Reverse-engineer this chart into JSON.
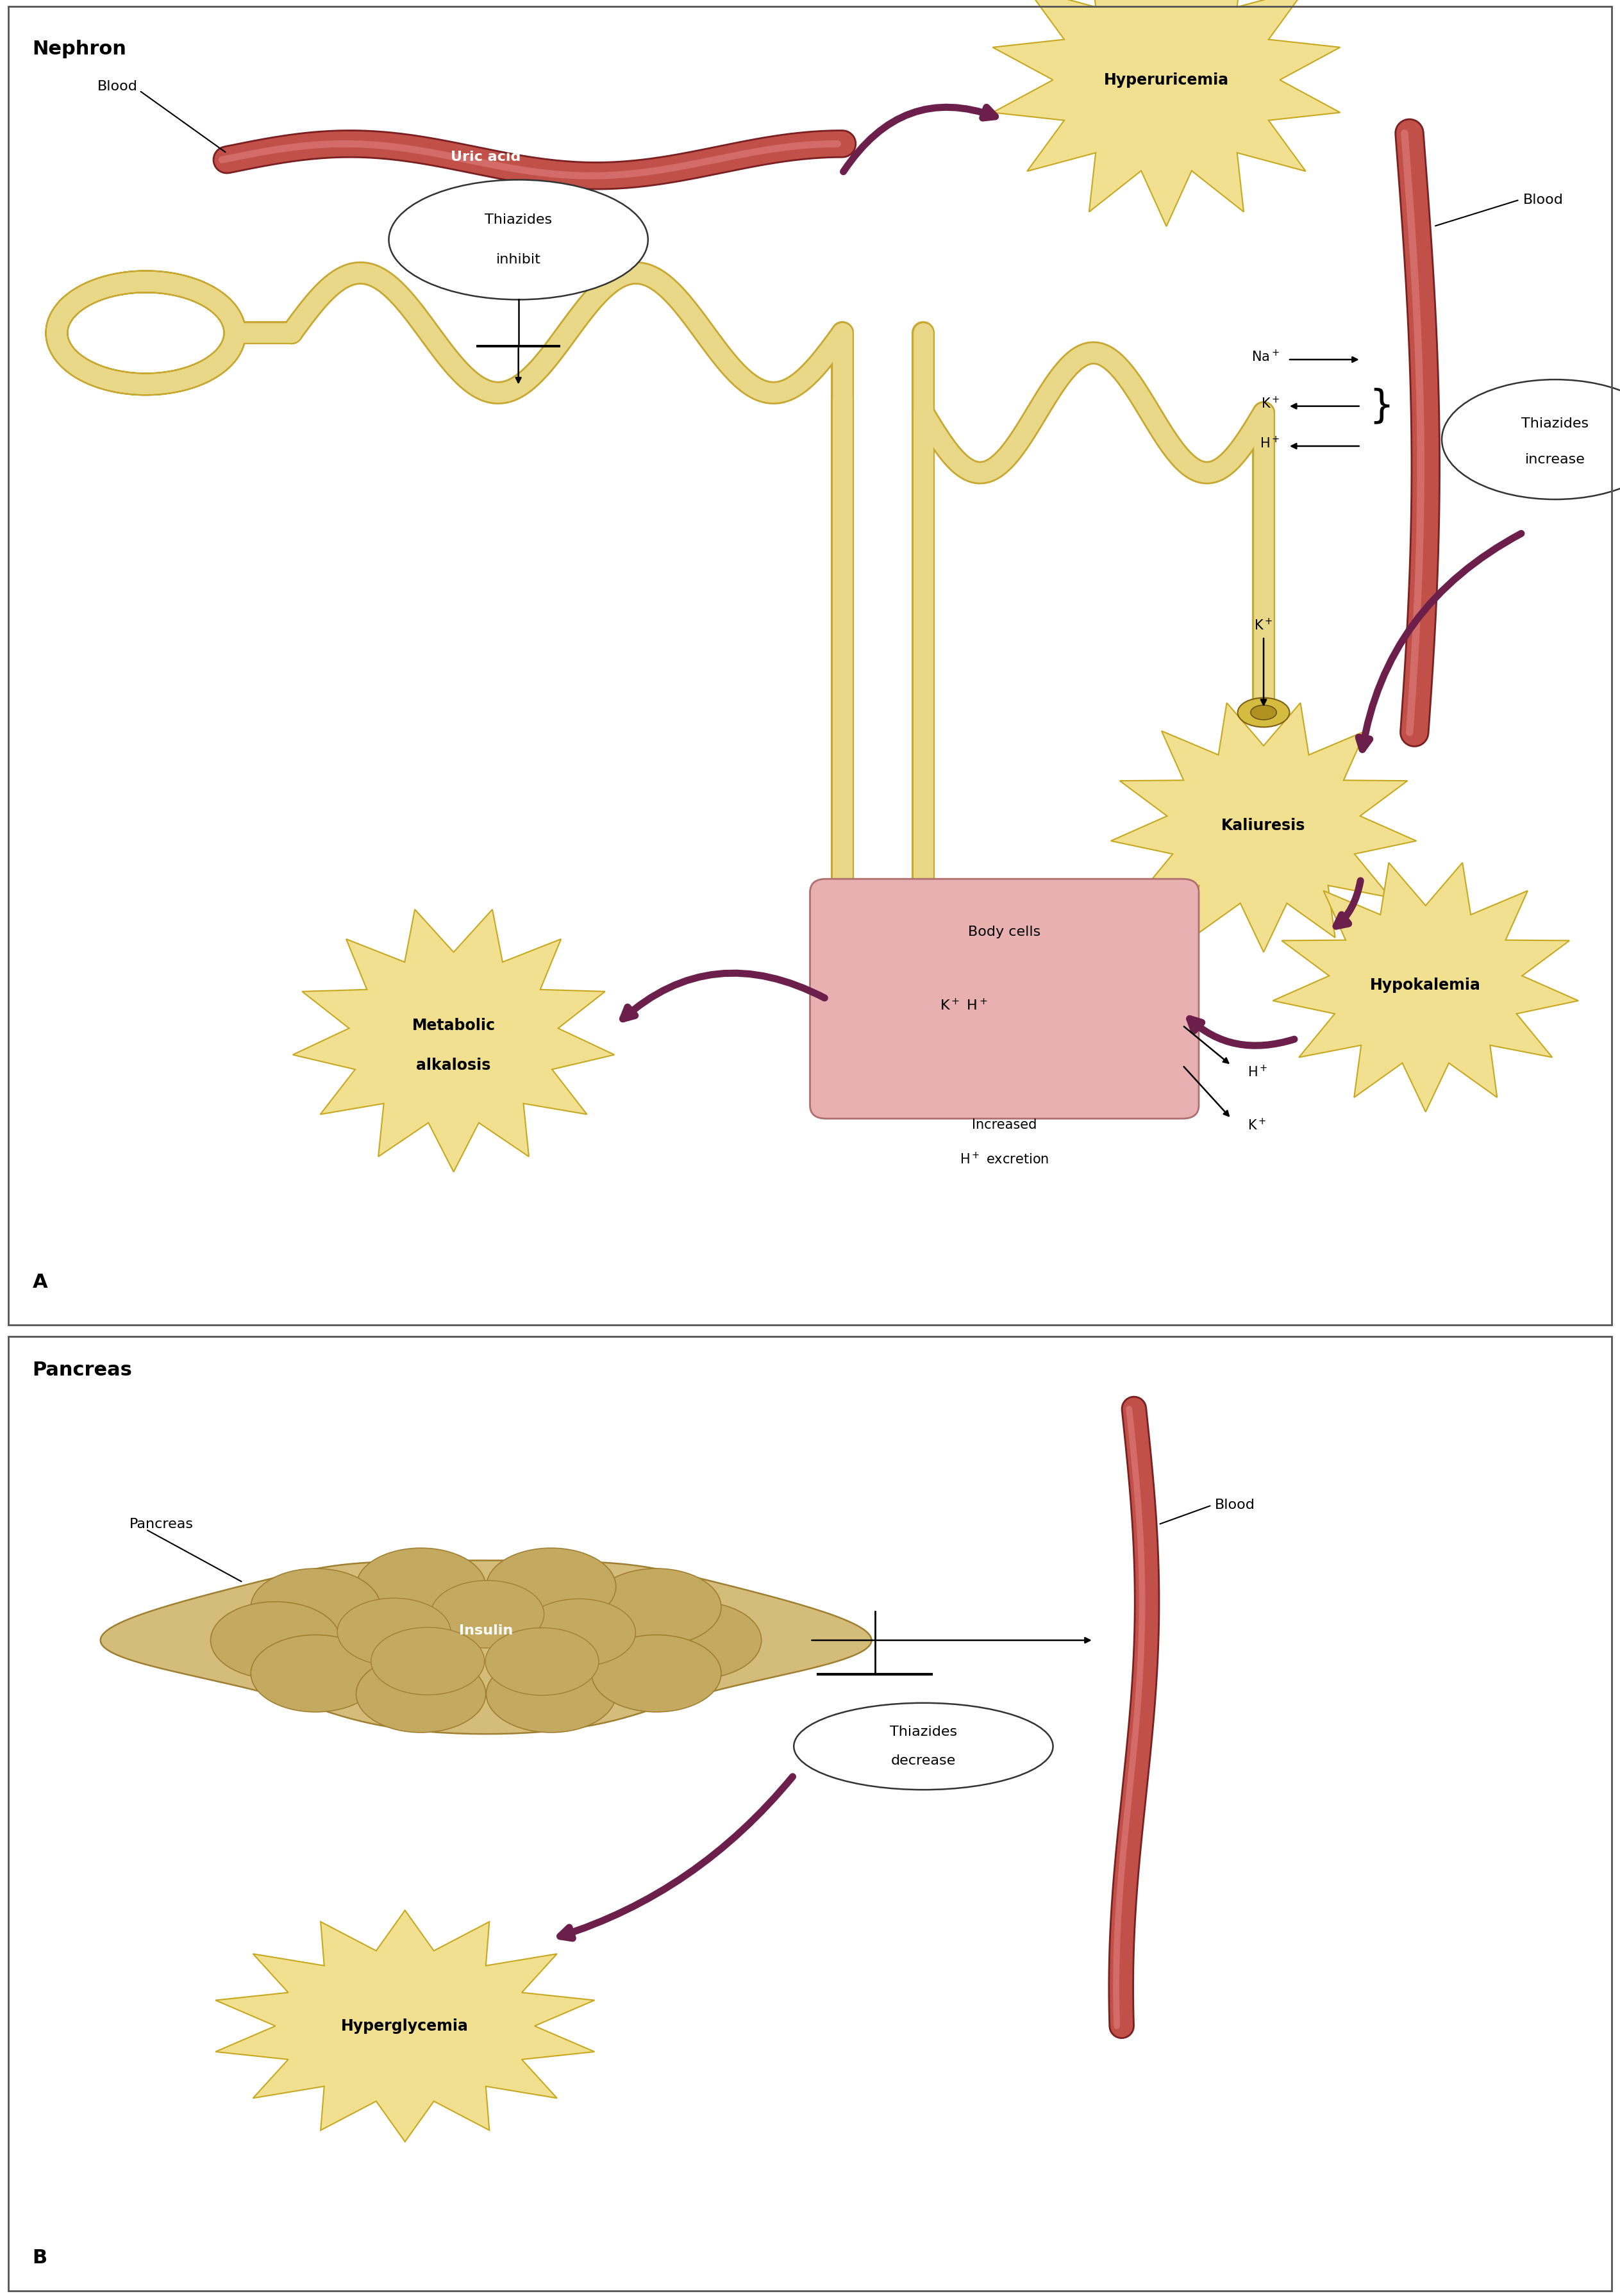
{
  "bg_color": "#ffffff",
  "panel_A_title": "Nephron",
  "panel_B_title": "Pancreas",
  "label_A": "A",
  "label_B": "B",
  "arrow_color": "#6b1f4a",
  "tubule_color": "#e8d888",
  "tubule_edge": "#c8a830",
  "tubule_lw": 22,
  "blood_color": "#c05048",
  "blood_edge": "#7a2020",
  "blood_lw": 28,
  "starburst_fill": "#f0e090",
  "starburst_edge": "#c8a820",
  "starburst_lw": 1.5,
  "ellipse_fill": "#ffffff",
  "ellipse_edge": "#333333",
  "body_cell_fill": "#e8b0b0",
  "body_cell_edge": "#b07070",
  "pancreas_fill": "#d4bc7a",
  "pancreas_edge": "#a08030",
  "pancreas_lobule": "#c4aa60",
  "text_color": "#000000",
  "fs_title": 22,
  "fs_label": 22,
  "fs_text": 16,
  "fs_ion": 15,
  "fs_starburst": 17
}
